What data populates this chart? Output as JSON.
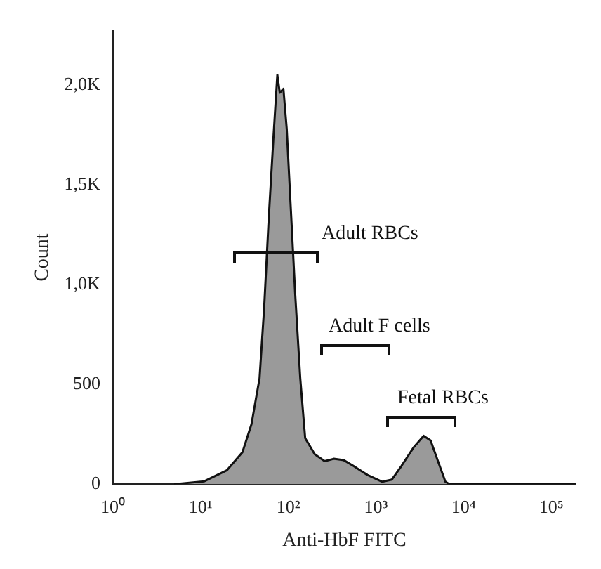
{
  "chart_data": {
    "type": "area",
    "xlabel": "Anti-HbF FITC",
    "ylabel": "Count",
    "log": "x",
    "grid": false,
    "legend": false,
    "marker": "none",
    "xlim": [
      1,
      190000
    ],
    "xticks": [
      {
        "value": 1,
        "label": "10⁰"
      },
      {
        "value": 10,
        "label": "10¹"
      },
      {
        "value": 100,
        "label": "10²"
      },
      {
        "value": 1000,
        "label": "10³"
      },
      {
        "value": 10000,
        "label": "10⁴"
      },
      {
        "value": 100000,
        "label": "10⁵"
      }
    ],
    "ylim": [
      0,
      2270
    ],
    "yticks": [
      0,
      500,
      {
        "value": 1000,
        "label": "1,0K"
      },
      {
        "value": 1500,
        "label": "1,5K"
      },
      {
        "value": 2000,
        "label": "2,0K"
      }
    ],
    "series": [
      {
        "color": "#9a9a9a",
        "x": [
          5,
          11,
          20,
          30,
          38,
          47,
          53,
          60,
          68,
          75,
          80,
          88,
          96,
          106,
          120,
          137,
          156,
          200,
          260,
          330,
          430,
          550,
          800,
          1180,
          1520,
          1960,
          2700,
          3500,
          4200,
          5100,
          6200,
          6900,
          190000
        ],
        "values": [
          0,
          14,
          70,
          160,
          300,
          530,
          880,
          1340,
          1750,
          2050,
          1960,
          1980,
          1780,
          1410,
          950,
          530,
          230,
          150,
          115,
          127,
          120,
          92,
          46,
          12,
          23,
          92,
          185,
          242,
          219,
          115,
          12,
          0,
          0
        ]
      }
    ],
    "annotations": [
      "Adult RBCs",
      "Adult F cells",
      "Fetal RBCs"
    ]
  }
}
